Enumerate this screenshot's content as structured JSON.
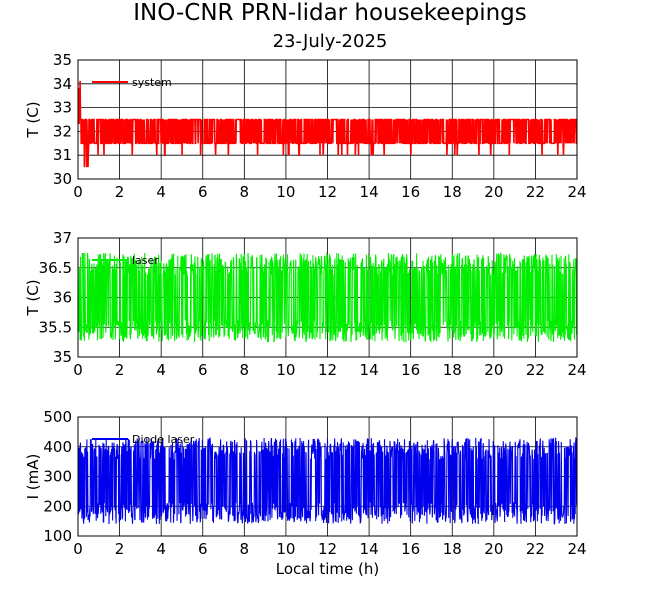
{
  "title": "INO-CNR PRN-lidar housekeepings",
  "subtitle": "23-July-2025",
  "chart_data": [
    {
      "type": "line",
      "ylabel": "T (C)",
      "xlabel": "",
      "xlim": [
        0,
        24
      ],
      "ylim": [
        30,
        35
      ],
      "x_ticks": [
        "0",
        "2",
        "4",
        "6",
        "8",
        "10",
        "12",
        "14",
        "16",
        "18",
        "20",
        "22",
        "24"
      ],
      "y_ticks": [
        "30",
        "31",
        "32",
        "33",
        "34",
        "35"
      ],
      "grid": true,
      "legend_position": "top-left",
      "series": [
        {
          "name": "system",
          "color": "#ff0000",
          "base": 32.0,
          "low": 31.5,
          "high": 32.5,
          "dip": 31.0,
          "spike_start": 34.5
        }
      ]
    },
    {
      "type": "line",
      "ylabel": "T (C)",
      "xlabel": "",
      "xlim": [
        0,
        24
      ],
      "ylim": [
        35,
        37
      ],
      "x_ticks": [
        "0",
        "2",
        "4",
        "6",
        "8",
        "10",
        "12",
        "14",
        "16",
        "18",
        "20",
        "22",
        "24"
      ],
      "y_ticks": [
        "35",
        "35.5",
        "36",
        "36.5",
        "37"
      ],
      "grid": true,
      "legend_position": "top-left",
      "series": [
        {
          "name": "laser",
          "color": "#00ee00",
          "mean": 36.0,
          "low": 35.25,
          "high": 36.75
        }
      ]
    },
    {
      "type": "line",
      "ylabel": "I (mA)",
      "xlabel": "Local time (h)",
      "xlim": [
        0,
        24
      ],
      "ylim": [
        100,
        500
      ],
      "x_ticks": [
        "0",
        "2",
        "4",
        "6",
        "8",
        "10",
        "12",
        "14",
        "16",
        "18",
        "20",
        "22",
        "24"
      ],
      "y_ticks": [
        "100",
        "200",
        "300",
        "400",
        "500"
      ],
      "grid": true,
      "legend_position": "top-left",
      "series": [
        {
          "name": "Diode laser",
          "color": "#0000ee",
          "mean": 285,
          "low": 140,
          "high": 430
        }
      ]
    }
  ]
}
